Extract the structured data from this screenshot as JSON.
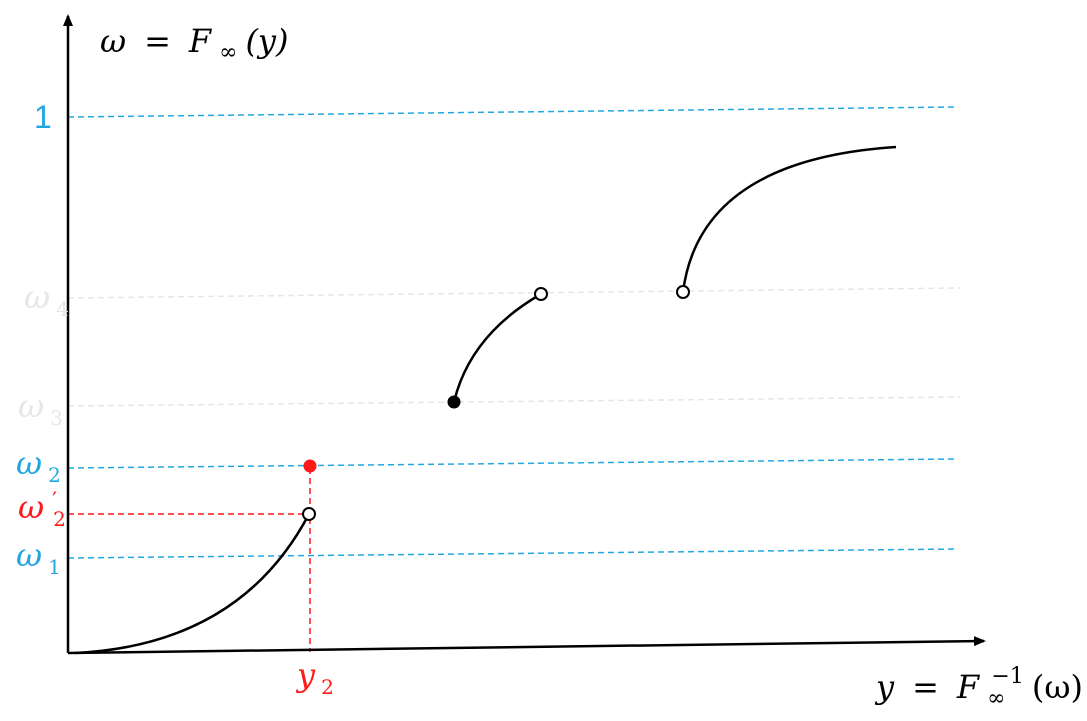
{
  "axes": {
    "y_label": {
      "omega": "ω",
      "eq": "=",
      "F": "F",
      "sub": "∞",
      "arg": "(y)"
    },
    "x_label": {
      "y": "y",
      "eq": "=",
      "F": "F",
      "sub": "∞",
      "sup": "−1",
      "arg": "(ω)"
    }
  },
  "levels": {
    "one": {
      "text": "1",
      "color": "#21a7e0"
    },
    "omega4": {
      "base": "ω",
      "sub": "4",
      "color": "#e6e6e6"
    },
    "omega3": {
      "base": "ω",
      "sub": "3",
      "color": "#e6e6e6"
    },
    "omega2": {
      "base": "ω",
      "sub": "2",
      "color": "#21a7e0"
    },
    "omega2prime": {
      "base": "ω",
      "prime": "′",
      "sub": "2",
      "color": "#ff1a1a"
    },
    "omega1": {
      "base": "ω",
      "sub": "1",
      "color": "#21a7e0"
    }
  },
  "y2_label": {
    "base": "y",
    "sub": "2",
    "color": "#ff1a1a"
  },
  "colors": {
    "axis": "#000000",
    "curve": "#000000",
    "guide_blue": "#21a7e0",
    "guide_gray": "#e6e6e6",
    "guide_red": "#ff1a1a",
    "filled_dot": "#000000",
    "red_dot": "#ff1a1a"
  }
}
